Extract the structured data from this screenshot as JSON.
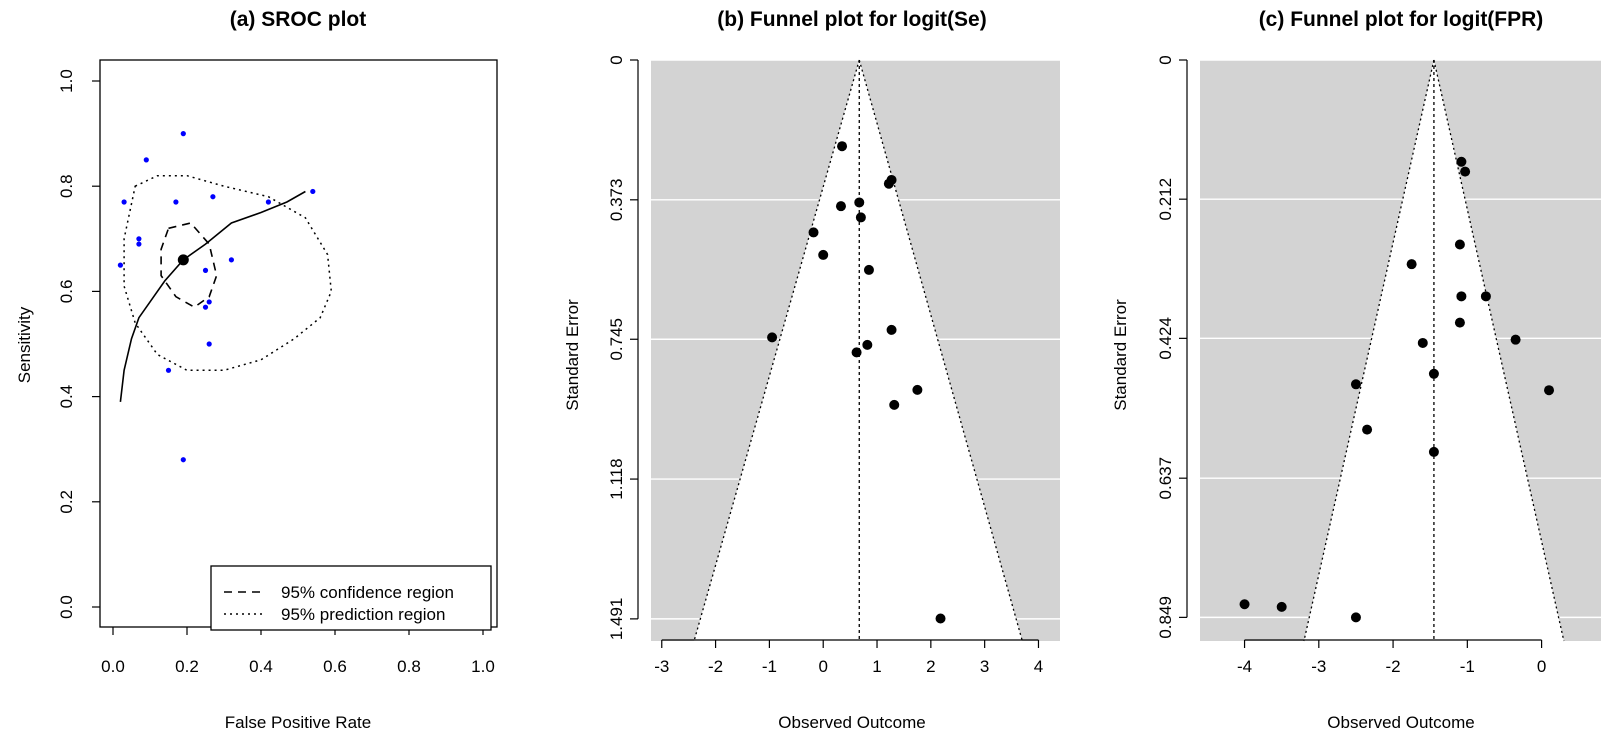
{
  "chart_data": [
    {
      "type": "scatter",
      "title": "(a) SROC plot",
      "xlabel": "False Positive Rate",
      "ylabel": "Sensitivity",
      "xlim": [
        0.0,
        1.0
      ],
      "ylim": [
        0.0,
        1.0
      ],
      "xticks": [
        "0.0",
        "0.2",
        "0.4",
        "0.6",
        "0.8",
        "1.0"
      ],
      "yticks": [
        "0.0",
        "0.2",
        "0.4",
        "0.6",
        "0.8",
        "1.0"
      ],
      "points_color": "#0000ff",
      "points": [
        {
          "x": 0.19,
          "y": 0.9
        },
        {
          "x": 0.09,
          "y": 0.85
        },
        {
          "x": 0.03,
          "y": 0.77
        },
        {
          "x": 0.17,
          "y": 0.77
        },
        {
          "x": 0.27,
          "y": 0.78
        },
        {
          "x": 0.42,
          "y": 0.77
        },
        {
          "x": 0.54,
          "y": 0.79
        },
        {
          "x": 0.07,
          "y": 0.7
        },
        {
          "x": 0.07,
          "y": 0.69
        },
        {
          "x": 0.02,
          "y": 0.65
        },
        {
          "x": 0.25,
          "y": 0.64
        },
        {
          "x": 0.32,
          "y": 0.66
        },
        {
          "x": 0.26,
          "y": 0.58
        },
        {
          "x": 0.25,
          "y": 0.57
        },
        {
          "x": 0.26,
          "y": 0.5
        },
        {
          "x": 0.15,
          "y": 0.45
        },
        {
          "x": 0.19,
          "y": 0.28
        }
      ],
      "summary_point": {
        "x": 0.19,
        "y": 0.66
      },
      "sroc_curve": [
        {
          "x": 0.02,
          "y": 0.39
        },
        {
          "x": 0.03,
          "y": 0.45
        },
        {
          "x": 0.05,
          "y": 0.51
        },
        {
          "x": 0.07,
          "y": 0.55
        },
        {
          "x": 0.1,
          "y": 0.58
        },
        {
          "x": 0.14,
          "y": 0.62
        },
        {
          "x": 0.19,
          "y": 0.66
        },
        {
          "x": 0.25,
          "y": 0.69
        },
        {
          "x": 0.32,
          "y": 0.73
        },
        {
          "x": 0.4,
          "y": 0.75
        },
        {
          "x": 0.47,
          "y": 0.77
        },
        {
          "x": 0.52,
          "y": 0.79
        }
      ],
      "confidence_region": [
        {
          "x": 0.15,
          "y": 0.72
        },
        {
          "x": 0.21,
          "y": 0.73
        },
        {
          "x": 0.26,
          "y": 0.69
        },
        {
          "x": 0.28,
          "y": 0.63
        },
        {
          "x": 0.26,
          "y": 0.59
        },
        {
          "x": 0.22,
          "y": 0.57
        },
        {
          "x": 0.17,
          "y": 0.59
        },
        {
          "x": 0.13,
          "y": 0.63
        },
        {
          "x": 0.13,
          "y": 0.68
        },
        {
          "x": 0.15,
          "y": 0.72
        }
      ],
      "prediction_region": [
        {
          "x": 0.06,
          "y": 0.8
        },
        {
          "x": 0.12,
          "y": 0.82
        },
        {
          "x": 0.2,
          "y": 0.82
        },
        {
          "x": 0.3,
          "y": 0.8
        },
        {
          "x": 0.42,
          "y": 0.78
        },
        {
          "x": 0.52,
          "y": 0.74
        },
        {
          "x": 0.58,
          "y": 0.67
        },
        {
          "x": 0.59,
          "y": 0.6
        },
        {
          "x": 0.56,
          "y": 0.55
        },
        {
          "x": 0.49,
          "y": 0.51
        },
        {
          "x": 0.4,
          "y": 0.47
        },
        {
          "x": 0.3,
          "y": 0.45
        },
        {
          "x": 0.2,
          "y": 0.45
        },
        {
          "x": 0.12,
          "y": 0.48
        },
        {
          "x": 0.06,
          "y": 0.54
        },
        {
          "x": 0.03,
          "y": 0.61
        },
        {
          "x": 0.03,
          "y": 0.7
        },
        {
          "x": 0.06,
          "y": 0.8
        }
      ],
      "legend": {
        "placement": "bottom-right",
        "entries": [
          "95% confidence region",
          "95% prediction region"
        ]
      }
    },
    {
      "type": "scatter",
      "title": "(b) Funnel plot for logit(Se)",
      "xlabel": "Observed Outcome",
      "ylabel": "Standard Error",
      "xlim": [
        -3.2,
        4.4
      ],
      "ylim": [
        1.55,
        0.0
      ],
      "xticks": [
        "-3",
        "-2",
        "-1",
        "0",
        "1",
        "2",
        "3",
        "4"
      ],
      "yticks": [
        "0",
        "0.373",
        "0.745",
        "1.118",
        "1.491"
      ],
      "ytick_values": [
        0,
        0.373,
        0.745,
        1.118,
        1.491
      ],
      "background": "#d3d3d3",
      "center": 0.67,
      "funnel_base": [
        -2.4,
        3.7
      ],
      "points": [
        {
          "x": 0.35,
          "y": 0.23
        },
        {
          "x": 1.22,
          "y": 0.33
        },
        {
          "x": 1.27,
          "y": 0.32
        },
        {
          "x": 0.33,
          "y": 0.39
        },
        {
          "x": 0.67,
          "y": 0.38
        },
        {
          "x": 0.7,
          "y": 0.42
        },
        {
          "x": -0.18,
          "y": 0.46
        },
        {
          "x": 0.0,
          "y": 0.52
        },
        {
          "x": 0.85,
          "y": 0.56
        },
        {
          "x": -0.95,
          "y": 0.74
        },
        {
          "x": 1.27,
          "y": 0.72
        },
        {
          "x": 0.82,
          "y": 0.76
        },
        {
          "x": 0.62,
          "y": 0.78
        },
        {
          "x": 1.75,
          "y": 0.88
        },
        {
          "x": 1.32,
          "y": 0.92
        },
        {
          "x": 2.18,
          "y": 1.49
        }
      ]
    },
    {
      "type": "scatter",
      "title": "(c) Funnel plot for logit(FPR)",
      "xlabel": "Observed Outcome",
      "ylabel": "Standard Error",
      "xlim": [
        -4.6,
        0.8
      ],
      "ylim": [
        0.885,
        0.0
      ],
      "xticks": [
        "-4",
        "-3",
        "-2",
        "-1",
        "0"
      ],
      "yticks": [
        "0",
        "0.212",
        "0.424",
        "0.637",
        "0.849"
      ],
      "ytick_values": [
        0,
        0.212,
        0.424,
        0.637,
        0.849
      ],
      "background": "#d3d3d3",
      "center": -1.45,
      "funnel_base": [
        -3.2,
        0.3
      ],
      "points": [
        {
          "x": -1.08,
          "y": 0.155
        },
        {
          "x": -1.03,
          "y": 0.17
        },
        {
          "x": -1.1,
          "y": 0.281
        },
        {
          "x": -1.75,
          "y": 0.311
        },
        {
          "x": -1.08,
          "y": 0.36
        },
        {
          "x": -0.75,
          "y": 0.36
        },
        {
          "x": -1.1,
          "y": 0.4
        },
        {
          "x": -1.6,
          "y": 0.431
        },
        {
          "x": -0.35,
          "y": 0.426
        },
        {
          "x": -2.5,
          "y": 0.494
        },
        {
          "x": -1.45,
          "y": 0.478
        },
        {
          "x": 0.1,
          "y": 0.503
        },
        {
          "x": -2.35,
          "y": 0.563
        },
        {
          "x": -1.45,
          "y": 0.597
        },
        {
          "x": -4.0,
          "y": 0.829
        },
        {
          "x": -3.5,
          "y": 0.833
        },
        {
          "x": -2.5,
          "y": 0.849
        }
      ]
    }
  ]
}
